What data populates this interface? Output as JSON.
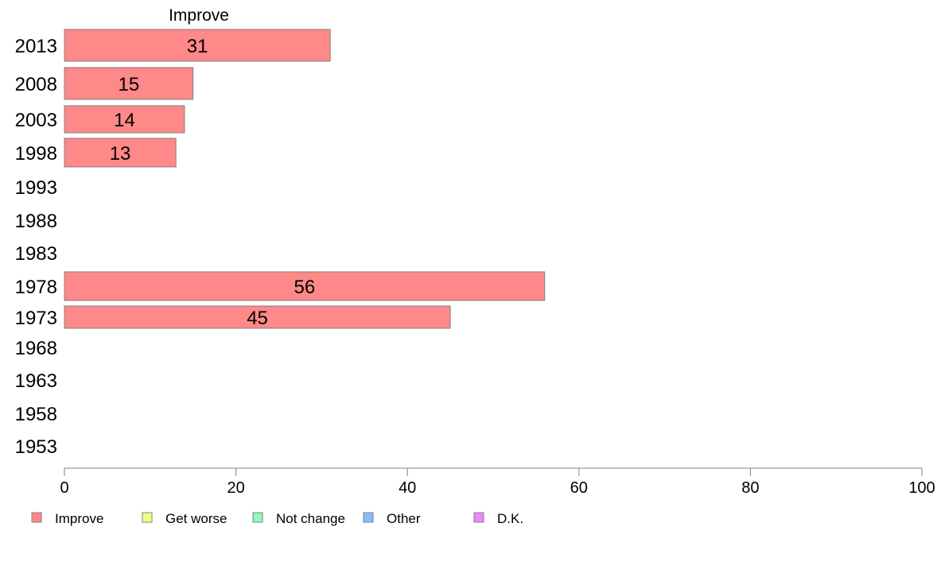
{
  "chart_data": {
    "type": "bar",
    "orientation": "horizontal",
    "title": "Improve",
    "categories": [
      "2013",
      "2008",
      "2003",
      "1998",
      "1993",
      "1988",
      "1983",
      "1978",
      "1973",
      "1968",
      "1963",
      "1958",
      "1953"
    ],
    "series": [
      {
        "name": "Improve",
        "color": "#ff8888",
        "values": [
          31,
          15,
          14,
          13,
          null,
          null,
          null,
          56,
          45,
          null,
          null,
          null,
          null
        ]
      }
    ],
    "xlim": [
      0,
      100
    ],
    "xticks": [
      "0",
      "20",
      "40",
      "60",
      "80",
      "100"
    ],
    "grid": false,
    "legend_position": "bottom-left",
    "legend": [
      {
        "label": "Improve",
        "color": "#ff8888"
      },
      {
        "label": "Get worse",
        "color": "#eeff88"
      },
      {
        "label": "Not change",
        "color": "#88ffbb"
      },
      {
        "label": "Other",
        "color": "#88bbff"
      },
      {
        "label": "D.K.",
        "color": "#ee88ff"
      }
    ]
  }
}
